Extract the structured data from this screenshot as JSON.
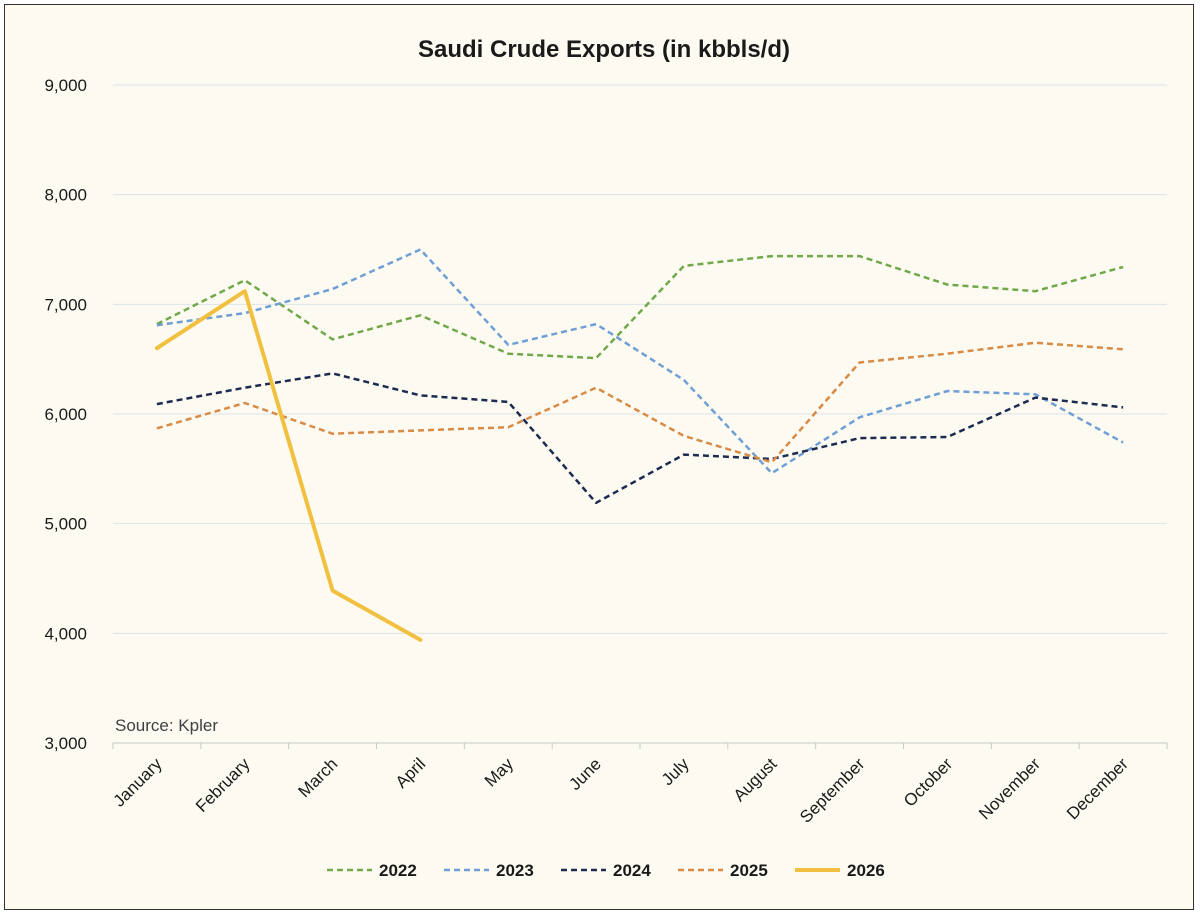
{
  "chart_data": {
    "type": "line",
    "title": "Saudi Crude Exports (in kbbls/d)",
    "xlabel": "",
    "ylabel": "",
    "source": "Source: Kpler",
    "categories": [
      "January",
      "February",
      "March",
      "April",
      "May",
      "June",
      "July",
      "August",
      "September",
      "October",
      "November",
      "December"
    ],
    "ylim": [
      3000,
      9000
    ],
    "yticks": [
      3000,
      4000,
      5000,
      6000,
      7000,
      8000,
      9000
    ],
    "ytick_labels": [
      "3,000",
      "4,000",
      "5,000",
      "6,000",
      "7,000",
      "8,000",
      "9,000"
    ],
    "grid": true,
    "legend_position": "bottom",
    "series": [
      {
        "name": "2022",
        "color": "#70a84a",
        "style": "dashed",
        "values": [
          6820,
          7220,
          6680,
          6900,
          6550,
          6510,
          7350,
          7440,
          7440,
          7180,
          7120,
          7340
        ]
      },
      {
        "name": "2023",
        "color": "#6f9fd4",
        "style": "dashed",
        "values": [
          6810,
          6920,
          7140,
          7500,
          6630,
          6820,
          6310,
          5460,
          5970,
          6210,
          6180,
          5740
        ]
      },
      {
        "name": "2024",
        "color": "#1c2b52",
        "style": "dashed",
        "values": [
          6090,
          6240,
          6370,
          6170,
          6110,
          5190,
          5630,
          5590,
          5780,
          5790,
          6150,
          6060
        ]
      },
      {
        "name": "2025",
        "color": "#d98a45",
        "style": "dashed",
        "values": [
          5870,
          6100,
          5820,
          5850,
          5880,
          6240,
          5800,
          5560,
          6470,
          6550,
          6650,
          6590
        ]
      },
      {
        "name": "2026",
        "color": "#f2c040",
        "style": "solid",
        "values": [
          6600,
          7120,
          4390,
          3940,
          null,
          null,
          null,
          null,
          null,
          null,
          null,
          null
        ]
      }
    ]
  }
}
